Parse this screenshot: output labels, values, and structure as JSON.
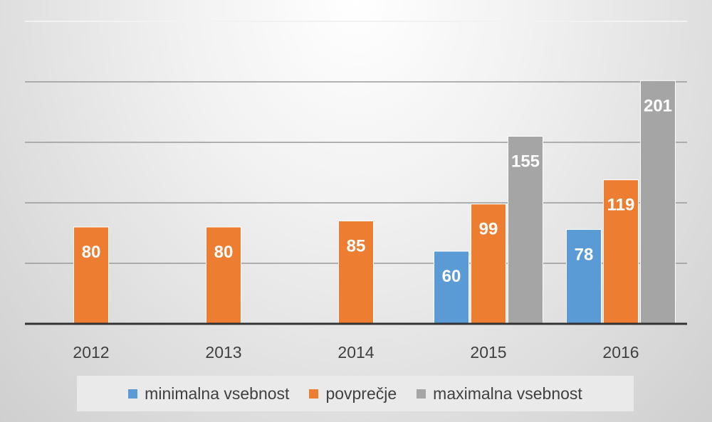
{
  "chart_data": {
    "type": "bar",
    "categories": [
      "2012",
      "2013",
      "2014",
      "2015",
      "2016"
    ],
    "series": [
      {
        "name": "minimalna vsebnost",
        "color": "#5b9bd5",
        "values": [
          null,
          null,
          null,
          60,
          78
        ]
      },
      {
        "name": "povprečje",
        "color": "#ed7d31",
        "values": [
          80,
          80,
          85,
          99,
          119
        ]
      },
      {
        "name": "maximalna vsebnost",
        "color": "#a5a5a5",
        "values": [
          null,
          null,
          null,
          155,
          201
        ]
      }
    ],
    "ylim": [
      0,
      250
    ],
    "gridlines": [
      50,
      100,
      150,
      200,
      250
    ],
    "grid": true,
    "legend_position": "bottom",
    "title": "",
    "xlabel": "",
    "ylabel": ""
  }
}
